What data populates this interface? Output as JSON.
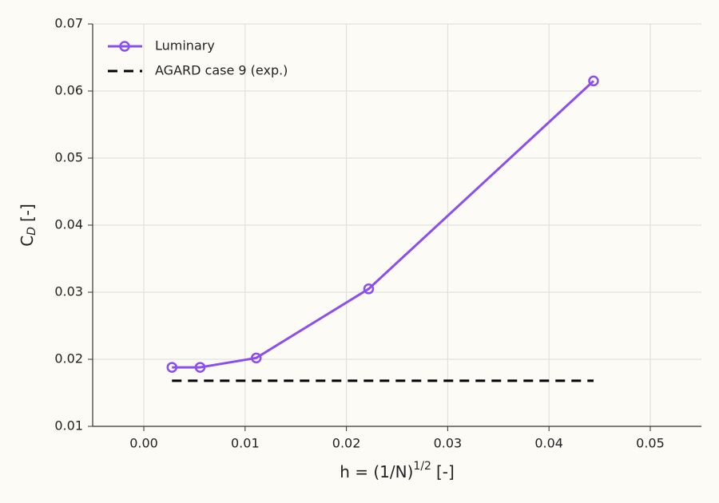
{
  "chart_data": {
    "type": "line",
    "xlabel": {
      "text": "h = (1/N)",
      "superscript": "1/2",
      "suffix": "[-]"
    },
    "ylabel": {
      "text": "C",
      "subscript": "D",
      "suffix": "[-]"
    },
    "series": [
      {
        "name": "Luminary",
        "color": "#8b4ff0",
        "marker": "circle",
        "linestyle": "solid",
        "x": [
          0.00278,
          0.00556,
          0.0111,
          0.0222,
          0.0444
        ],
        "values": [
          0.0188,
          0.0188,
          0.0202,
          0.0305,
          0.0615
        ]
      },
      {
        "name": "AGARD case 9 (exp.)",
        "color": "#000000",
        "marker": "none",
        "linestyle": "dashed",
        "x": [
          0.00278,
          0.0444
        ],
        "values": [
          0.0168,
          0.0168
        ]
      }
    ],
    "xlim": [
      -0.00505,
      0.05505
    ],
    "xticks": [
      {
        "value": 0,
        "label": "0.00"
      },
      0.01,
      0.02,
      0.03,
      0.04,
      0.05
    ],
    "ylim": [
      0.01,
      0.07
    ],
    "yticks": [
      0.01,
      0.02,
      0.03,
      0.04,
      0.05,
      0.06,
      0.07
    ],
    "grid": true,
    "legend": "upper-left"
  }
}
